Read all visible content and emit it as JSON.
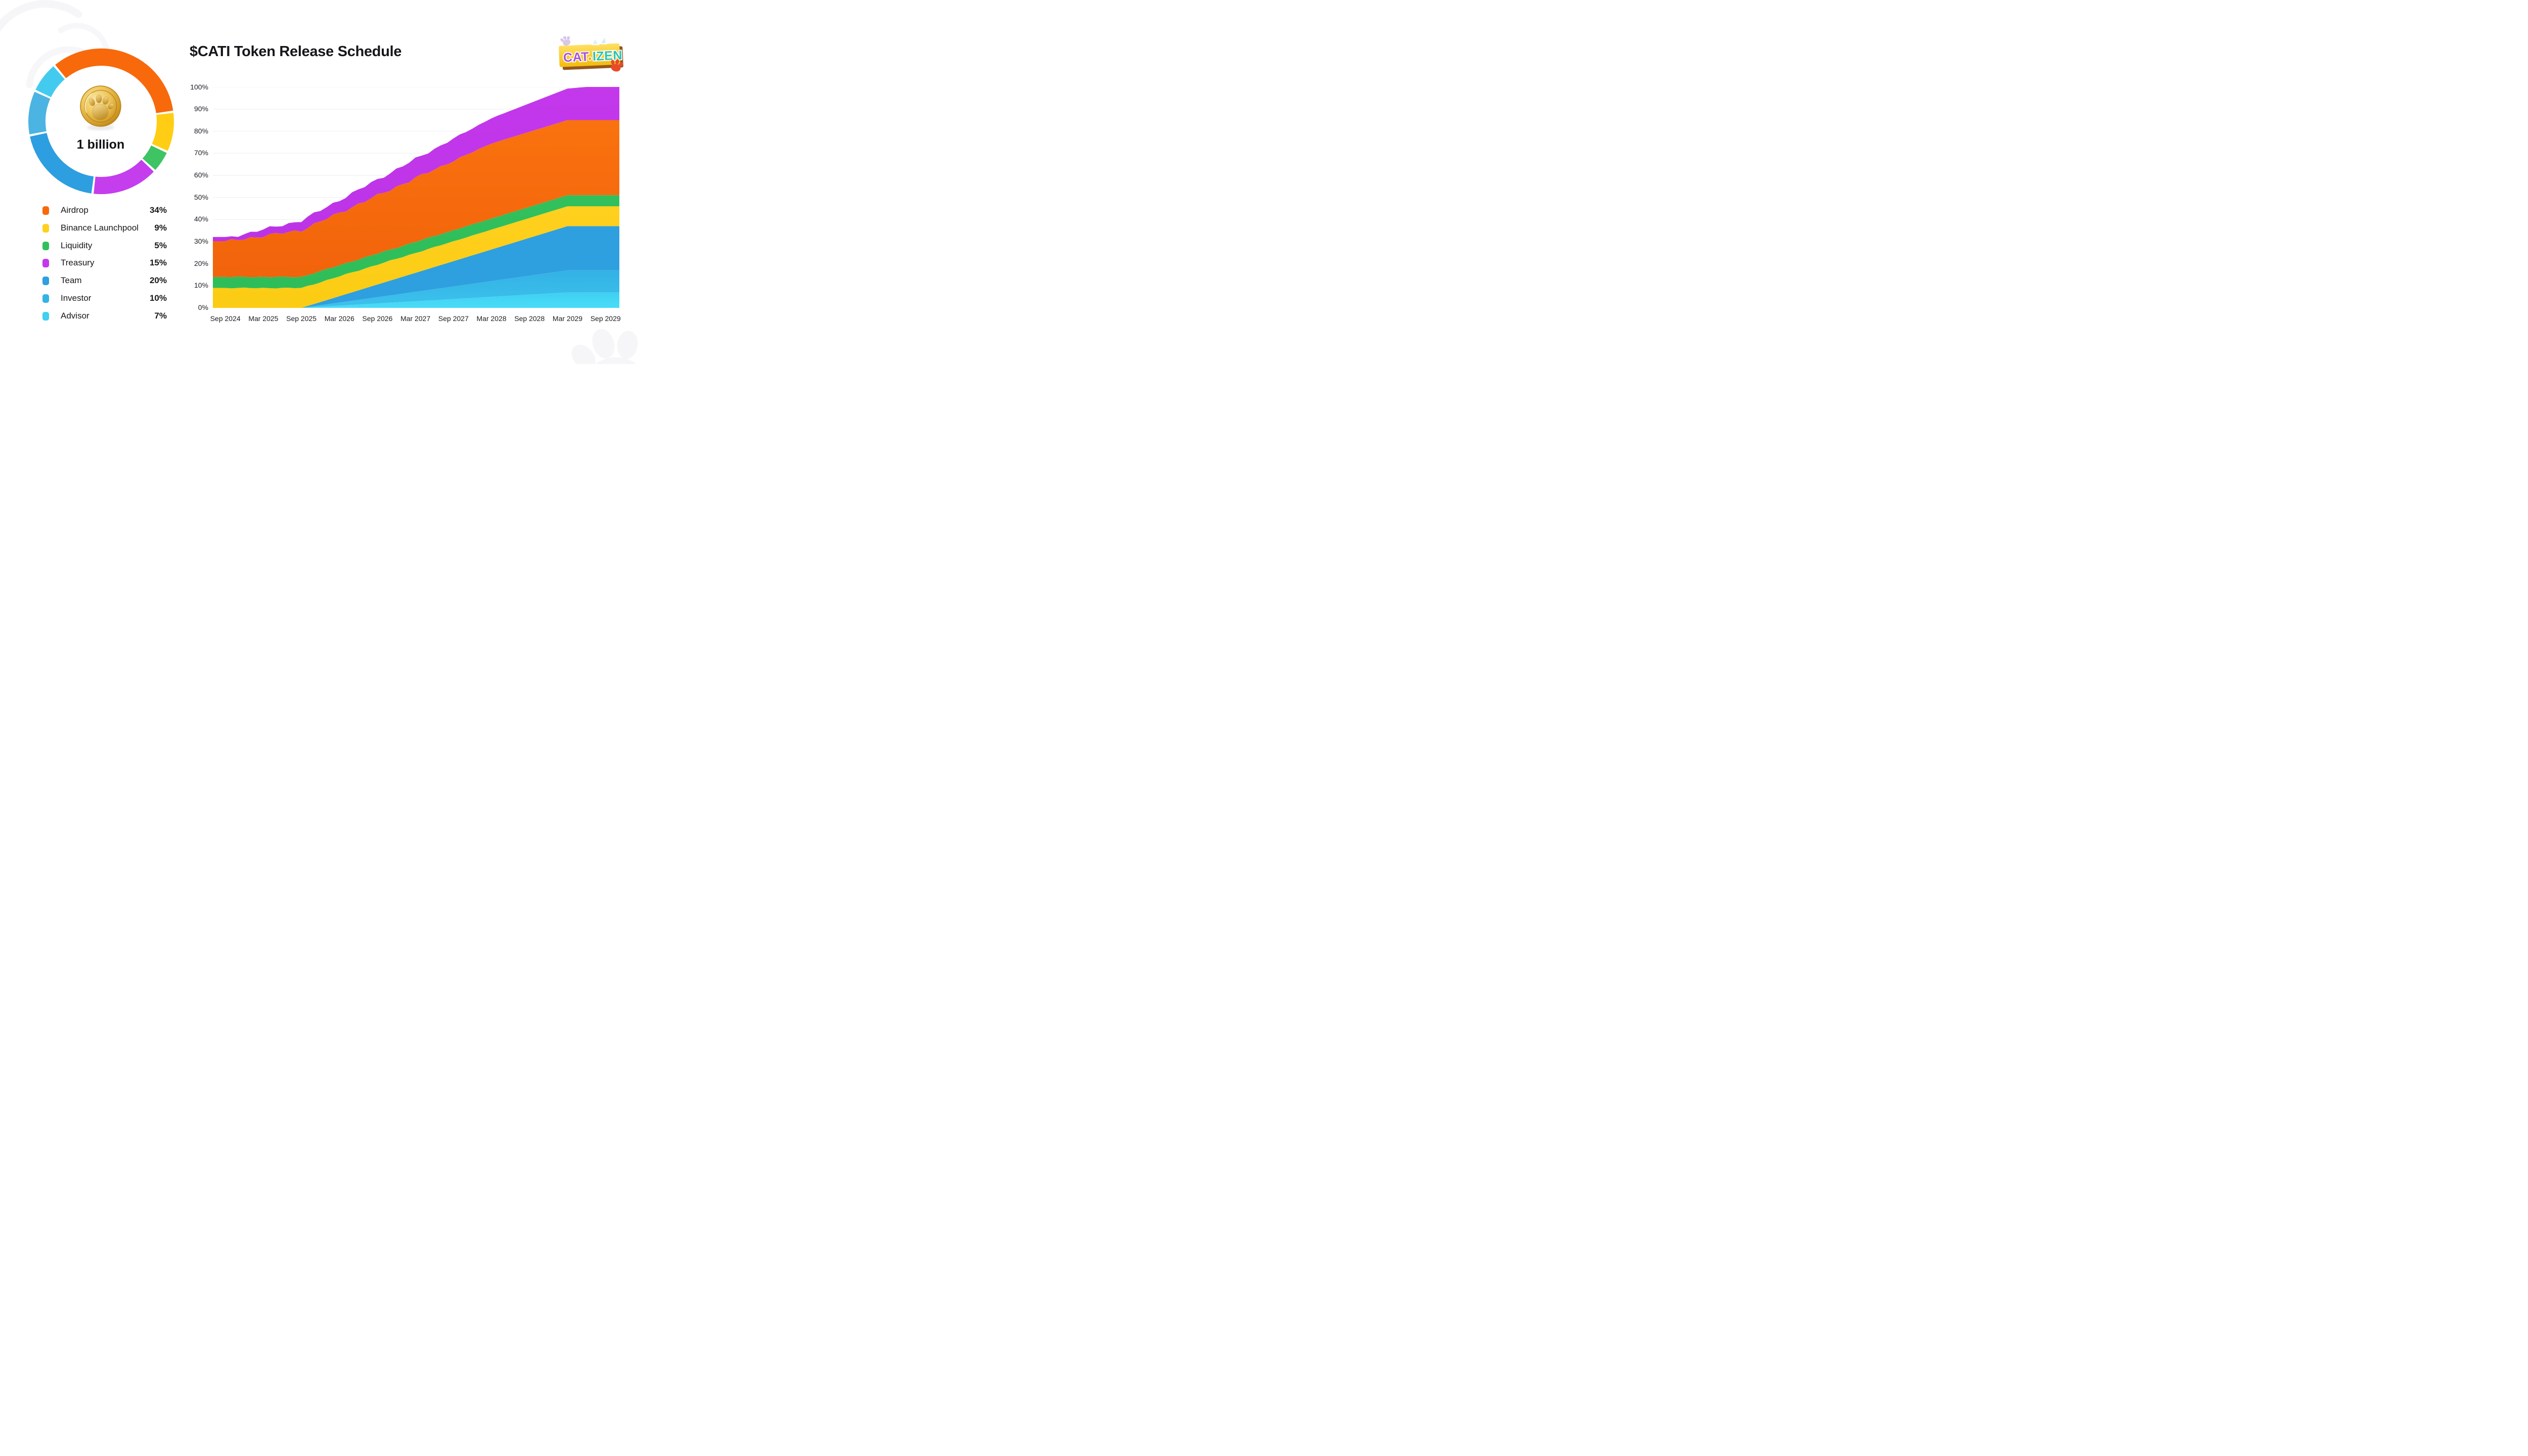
{
  "title": "$CATI Token Release Schedule",
  "donut": {
    "center_label": "1 billion",
    "coin_icon": "gold-paw-coin",
    "start_angle_deg": -40,
    "gap_deg": 1.8,
    "outer_radius": 144,
    "inner_radius": 110
  },
  "allocations": [
    {
      "label": "Airdrop",
      "percent": 34,
      "percent_label": "34%",
      "color": "#F8690C",
      "donut_color": "#F8690C"
    },
    {
      "label": "Binance Launchpool",
      "percent": 9,
      "percent_label": "9%",
      "color": "#FFD01E",
      "donut_color": "#FFCE14"
    },
    {
      "label": "Liquidity",
      "percent": 5,
      "percent_label": "5%",
      "color": "#31C05C",
      "donut_color": "#3FC463"
    },
    {
      "label": "Treasury",
      "percent": 15,
      "percent_label": "15%",
      "color": "#C438EC",
      "donut_color": "#C43EEE"
    },
    {
      "label": "Team",
      "percent": 20,
      "percent_label": "20%",
      "color": "#2E9FDF",
      "donut_color": "#2D9EE0"
    },
    {
      "label": "Investor",
      "percent": 10,
      "percent_label": "10%",
      "color": "#35B3E6",
      "donut_color": "#4BB4E2"
    },
    {
      "label": "Advisor",
      "percent": 7,
      "percent_label": "7%",
      "color": "#3FD0F2",
      "donut_color": "#43CBEF"
    }
  ],
  "chart_data": {
    "type": "area",
    "stacked": true,
    "title": "$CATI Token Release Schedule",
    "x_start": "Sep 2024",
    "x_end": "Sep 2029",
    "x_step": "quarterly",
    "x_ticks": [
      "Sep 2024",
      "Mar 2025",
      "Sep 2025",
      "Mar 2026",
      "Sep 2026",
      "Mar 2027",
      "Sep 2027",
      "Mar 2028",
      "Sep 2028",
      "Mar 2029",
      "Sep 2029"
    ],
    "y_ticks": [
      "0%",
      "10%",
      "20%",
      "30%",
      "40%",
      "50%",
      "60%",
      "70%",
      "80%",
      "90%",
      "100%"
    ],
    "ylim": [
      0,
      100
    ],
    "grid": true,
    "legend_position": "left-panel",
    "series": [
      {
        "name": "Advisor",
        "color": "#3FD0F2",
        "color2": "#49DCF7",
        "values": [
          0,
          0,
          0,
          0,
          0,
          0.5,
          1,
          1.5,
          2,
          2.5,
          3,
          3.5,
          4,
          4.5,
          5,
          5.5,
          6,
          6.5,
          7,
          7,
          7
        ]
      },
      {
        "name": "Investor",
        "color": "#33B2E5",
        "color2": "#3CC2EC",
        "values": [
          0,
          0,
          0,
          0,
          0,
          0.71,
          1.43,
          2.14,
          2.86,
          3.57,
          4.29,
          5,
          5.71,
          6.43,
          7.14,
          7.86,
          8.57,
          9.29,
          10,
          10,
          10
        ]
      },
      {
        "name": "Team",
        "color": "#2E9FDF",
        "color2": "#2E9FDF",
        "values": [
          0,
          0,
          0,
          0,
          0,
          1.43,
          2.86,
          4.29,
          5.71,
          7.14,
          8.57,
          10,
          11.43,
          12.86,
          14.29,
          15.71,
          17.14,
          18.57,
          20,
          20,
          20
        ]
      },
      {
        "name": "Binance Launchpool",
        "color": "#FFD01E",
        "color2": "#FBCC13",
        "values": [
          9,
          9,
          9,
          9,
          9,
          9,
          9,
          9,
          9,
          9,
          9,
          9,
          9,
          9,
          9,
          9,
          9,
          9,
          9,
          9,
          9
        ]
      },
      {
        "name": "Liquidity",
        "color": "#31C05C",
        "color2": "#2FBD59",
        "values": [
          5,
          5,
          5,
          5,
          5,
          5,
          5,
          5,
          5,
          5,
          5,
          5,
          5,
          5,
          5,
          5,
          5,
          5,
          5,
          5,
          5
        ]
      },
      {
        "name": "Airdrop",
        "color": "#FA720F",
        "color2": "#F2630B",
        "values": [
          16,
          17.29,
          18.57,
          19.86,
          21.14,
          22.43,
          23.71,
          25,
          26.29,
          27.57,
          28.86,
          30.14,
          31.43,
          32.71,
          34,
          34,
          34,
          34,
          34,
          34,
          34
        ]
      },
      {
        "name": "Treasury",
        "color": "#C438EC",
        "color2": "#BC33E6",
        "values": [
          1.5,
          2.21,
          2.92,
          3.63,
          4.34,
          5.05,
          5.76,
          6.47,
          7.18,
          7.89,
          8.61,
          9.32,
          10.03,
          10.74,
          11.45,
          12.16,
          12.87,
          13.58,
          14.29,
          15,
          15
        ]
      }
    ]
  },
  "logo": {
    "text_cat": "CAT",
    "text_izen": "IZEN",
    "banner_color": "#F8C911",
    "banner_shadow_color": "#95561D",
    "cat_color": "#A753D8",
    "izen_color": "#2CC3AE",
    "paw_color": "#E84B2B",
    "dot_color": "#F6AE08"
  }
}
